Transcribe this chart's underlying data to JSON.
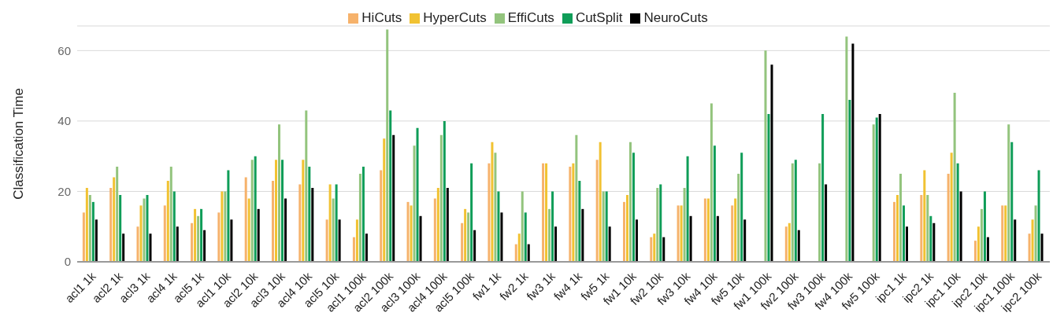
{
  "chart_data": {
    "type": "bar",
    "ylabel": "Classification Time",
    "legend": "top",
    "grid": "y",
    "ylim": [
      0,
      67
    ],
    "yticks": [
      0,
      20,
      40,
      60
    ],
    "categories": [
      "acl1 1k",
      "acl2 1k",
      "acl3 1k",
      "acl4 1k",
      "acl5 1k",
      "acl1 10k",
      "acl2 10k",
      "acl3 10k",
      "acl4 10k",
      "acl5 10k",
      "acl1 100k",
      "acl2 100k",
      "acl3 100k",
      "acl4 100k",
      "acl5 100k",
      "fw1 1k",
      "fw2 1k",
      "fw3 1k",
      "fw4 1k",
      "fw5 1k",
      "fw1 10k",
      "fw2 10k",
      "fw3 10k",
      "fw4 10k",
      "fw5 10k",
      "fw1 100k",
      "fw2 100k",
      "fw3 100k",
      "fw4 100k",
      "fw5 100k",
      "ipc1 1k",
      "ipc2 1k",
      "ipc1 10k",
      "ipc2 10k",
      "ipc1 100k",
      "ipc2 100k"
    ],
    "series": [
      {
        "name": "HiCuts",
        "color": "#f6b26b",
        "values": [
          14,
          21,
          10,
          16,
          11,
          14,
          24,
          23,
          22,
          12,
          7,
          26,
          17,
          18,
          11,
          28,
          5,
          28,
          27,
          29,
          17,
          7,
          16,
          18,
          16,
          null,
          10,
          null,
          null,
          null,
          17,
          19,
          25,
          6,
          16,
          8
        ]
      },
      {
        "name": "HyperCuts",
        "color": "#f1c232",
        "values": [
          21,
          24,
          16,
          23,
          15,
          20,
          18,
          29,
          29,
          22,
          12,
          35,
          16,
          21,
          15,
          34,
          8,
          28,
          28,
          34,
          19,
          8,
          16,
          18,
          18,
          null,
          11,
          null,
          null,
          null,
          19,
          26,
          31,
          10,
          16,
          12
        ]
      },
      {
        "name": "EffiCuts",
        "color": "#93c47d",
        "values": [
          19,
          27,
          18,
          27,
          13,
          20,
          29,
          39,
          43,
          18,
          25,
          66,
          33,
          36,
          14,
          31,
          20,
          15,
          36,
          20,
          34,
          21,
          21,
          45,
          25,
          60,
          28,
          28,
          64,
          39,
          25,
          19,
          48,
          15,
          39,
          16
        ]
      },
      {
        "name": "CutSplit",
        "color": "#0f9d58",
        "values": [
          17,
          19,
          19,
          20,
          15,
          26,
          30,
          29,
          27,
          22,
          27,
          43,
          38,
          40,
          28,
          20,
          14,
          20,
          23,
          20,
          31,
          22,
          30,
          33,
          31,
          42,
          29,
          42,
          46,
          41,
          16,
          13,
          28,
          20,
          34,
          26
        ]
      },
      {
        "name": "NeuroCuts",
        "color": "#000000",
        "values": [
          12,
          8,
          8,
          10,
          9,
          12,
          15,
          18,
          21,
          12,
          8,
          36,
          13,
          21,
          9,
          14,
          5,
          10,
          15,
          10,
          12,
          7,
          13,
          13,
          12,
          56,
          9,
          22,
          62,
          42,
          10,
          11,
          20,
          7,
          12,
          8
        ]
      }
    ]
  }
}
